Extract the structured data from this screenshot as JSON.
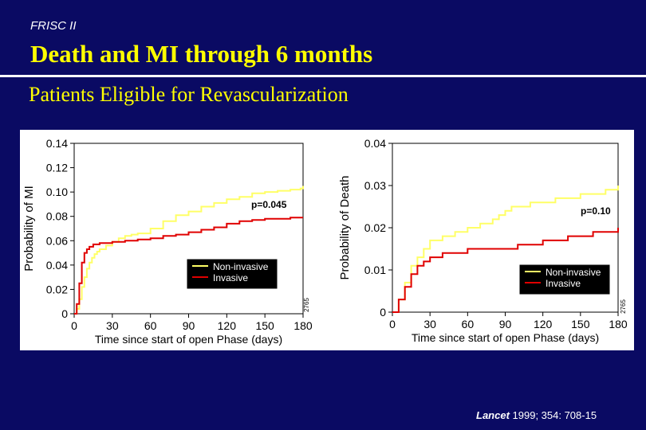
{
  "header": {
    "eyebrow": "FRISC II",
    "title": "Death and MI through 6 months",
    "subtitle": "Patients Eligible for Revascularization"
  },
  "citation": {
    "journal": "Lancet",
    "reference": " 1999; 354: 708-15"
  },
  "colors": {
    "background": "#0a0a63",
    "title": "#ffff00",
    "panel": "#ffffff",
    "non_invasive": "#ffff66",
    "invasive": "#e00000"
  },
  "chart_data": [
    {
      "type": "line",
      "title": "",
      "xlabel": "Time since start of open Phase (days)",
      "ylabel": "Probability of MI",
      "xlim": [
        0,
        180
      ],
      "ylim": [
        0,
        0.14
      ],
      "xticks": [
        0,
        30,
        60,
        90,
        120,
        150,
        180
      ],
      "xtick_labels": [
        "0",
        "30",
        "60",
        "90",
        "120",
        "150",
        "180"
      ],
      "yticks": [
        0,
        0.02,
        0.04,
        0.06,
        0.08,
        0.1,
        0.12,
        0.14
      ],
      "ytick_labels": [
        "0",
        "0.02",
        "0.04",
        "0.06",
        "0.08",
        "0.10",
        "0.12",
        "0.14"
      ],
      "legend": {
        "position": "lower-right",
        "entries": [
          "Non-invasive",
          "Invasive"
        ]
      },
      "annotations": [
        {
          "text": "p=0.045"
        }
      ],
      "side_code": "2765",
      "series": [
        {
          "name": "Non-invasive",
          "x": [
            0,
            2,
            4,
            6,
            8,
            10,
            12,
            14,
            16,
            18,
            20,
            25,
            30,
            35,
            40,
            45,
            50,
            60,
            70,
            80,
            90,
            100,
            110,
            120,
            130,
            140,
            150,
            160,
            170,
            178,
            180
          ],
          "y": [
            0,
            0.004,
            0.012,
            0.022,
            0.03,
            0.037,
            0.042,
            0.046,
            0.049,
            0.051,
            0.053,
            0.056,
            0.059,
            0.062,
            0.064,
            0.065,
            0.066,
            0.07,
            0.076,
            0.081,
            0.084,
            0.088,
            0.091,
            0.094,
            0.096,
            0.099,
            0.1,
            0.101,
            0.102,
            0.103,
            0.105
          ]
        },
        {
          "name": "Invasive",
          "x": [
            0,
            2,
            4,
            6,
            8,
            10,
            12,
            15,
            20,
            30,
            40,
            50,
            60,
            70,
            80,
            90,
            100,
            110,
            120,
            130,
            140,
            150,
            160,
            170,
            180
          ],
          "y": [
            0,
            0.008,
            0.025,
            0.042,
            0.05,
            0.053,
            0.055,
            0.057,
            0.058,
            0.059,
            0.06,
            0.061,
            0.062,
            0.064,
            0.065,
            0.067,
            0.069,
            0.071,
            0.074,
            0.076,
            0.077,
            0.078,
            0.078,
            0.079,
            0.079
          ]
        }
      ]
    },
    {
      "type": "line",
      "title": "",
      "xlabel": "Time since start of open Phase (days)",
      "ylabel": "Probability of Death",
      "xlim": [
        0,
        180
      ],
      "ylim": [
        0,
        0.04
      ],
      "xticks": [
        0,
        30,
        60,
        90,
        120,
        150,
        180
      ],
      "xtick_labels": [
        "0",
        "30",
        "60",
        "90",
        "120",
        "150",
        "180"
      ],
      "yticks": [
        0,
        0.01,
        0.02,
        0.03,
        0.04
      ],
      "ytick_labels": [
        "0",
        "0.01",
        "0.02",
        "0.03",
        "0.04"
      ],
      "legend": {
        "position": "lower-right",
        "entries": [
          "Non-invasive",
          "Invasive"
        ]
      },
      "annotations": [
        {
          "text": "p=0.10"
        }
      ],
      "side_code": "2765",
      "series": [
        {
          "name": "Non-invasive",
          "x": [
            0,
            5,
            10,
            15,
            20,
            25,
            30,
            35,
            40,
            45,
            50,
            55,
            60,
            65,
            70,
            75,
            80,
            85,
            90,
            95,
            100,
            110,
            120,
            130,
            140,
            150,
            160,
            170,
            175,
            180
          ],
          "y": [
            0,
            0.003,
            0.007,
            0.011,
            0.013,
            0.015,
            0.017,
            0.017,
            0.018,
            0.018,
            0.019,
            0.019,
            0.02,
            0.02,
            0.021,
            0.021,
            0.022,
            0.023,
            0.024,
            0.025,
            0.025,
            0.026,
            0.026,
            0.027,
            0.027,
            0.028,
            0.028,
            0.029,
            0.029,
            0.03
          ]
        },
        {
          "name": "Invasive",
          "x": [
            0,
            5,
            10,
            15,
            20,
            25,
            30,
            40,
            50,
            60,
            70,
            80,
            90,
            100,
            110,
            120,
            130,
            140,
            150,
            160,
            170,
            180
          ],
          "y": [
            0,
            0.003,
            0.006,
            0.009,
            0.011,
            0.012,
            0.013,
            0.014,
            0.014,
            0.015,
            0.015,
            0.015,
            0.015,
            0.016,
            0.016,
            0.017,
            0.017,
            0.018,
            0.018,
            0.019,
            0.019,
            0.02
          ]
        }
      ]
    }
  ]
}
